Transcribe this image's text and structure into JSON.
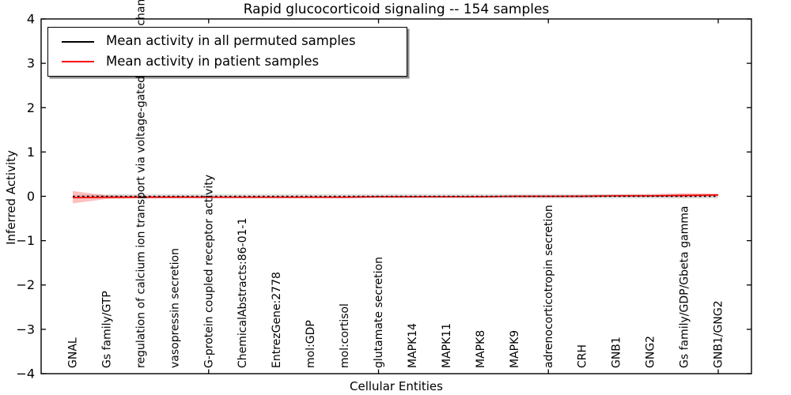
{
  "title": "Rapid glucocorticoid signaling -- 154 samples",
  "legend": {
    "items": [
      {
        "label": "Mean activity in all permuted samples",
        "color": "#000000"
      },
      {
        "label": "Mean activity in patient samples",
        "color": "#ff0000"
      }
    ]
  },
  "axes": {
    "x_label": "Cellular Entities",
    "y_label": "Inferred Activity",
    "y_ticks": [
      "4",
      "3",
      "2",
      "1",
      "0",
      "−1",
      "−2",
      "−3",
      "−4"
    ],
    "y_tick_values": [
      4,
      3,
      2,
      1,
      0,
      -1,
      -2,
      -3,
      -4
    ],
    "ylim": [
      -4,
      4
    ],
    "x_tick_mark_indices": [
      4,
      9,
      14,
      19
    ]
  },
  "chart_data": {
    "type": "line",
    "title": "Rapid glucocorticoid signaling -- 154 samples",
    "xlabel": "Cellular Entities",
    "ylabel": "Inferred Activity",
    "ylim": [
      -4,
      4
    ],
    "grid": false,
    "legend_position": "upper left",
    "categories": [
      "GNAL",
      "Gs family/GTP",
      "regulation of calcium ion transport via voltage-gated calcium channels",
      "vasopressin secretion",
      "G-protein coupled receptor activity",
      "ChemicalAbstracts:86-01-1",
      "EntrezGene:2778",
      "mol:GDP",
      "mol:cortisol",
      "glutamate secretion",
      "MAPK14",
      "MAPK11",
      "MAPK8",
      "MAPK9",
      "adrenocorticotropin secretion",
      "CRH",
      "GNB1",
      "GNG2",
      "Gs family/GDP/Gbeta gamma",
      "GNB1/GNG2"
    ],
    "series": [
      {
        "name": "Mean activity in all permuted samples",
        "color": "#000000",
        "style": "dotted",
        "values": [
          0,
          0,
          0,
          0,
          0,
          0,
          0,
          0,
          0,
          0,
          0,
          0,
          0,
          0,
          0,
          0,
          0,
          0,
          0,
          0
        ],
        "band_upper": [
          0.02,
          0.05,
          0.05,
          0.05,
          0.05,
          0.05,
          0.05,
          0.05,
          0.05,
          0.05,
          0.05,
          0.05,
          0.05,
          0.05,
          0.05,
          0.05,
          0.05,
          0.05,
          0.05,
          0.05
        ],
        "band_lower": [
          -0.02,
          -0.05,
          -0.05,
          -0.05,
          -0.05,
          -0.05,
          -0.05,
          -0.05,
          -0.05,
          -0.05,
          -0.05,
          -0.05,
          -0.05,
          -0.05,
          -0.05,
          -0.05,
          -0.05,
          -0.05,
          -0.05,
          -0.05
        ],
        "band_color": "rgba(0,0,0,0.13)"
      },
      {
        "name": "Mean activity in patient samples",
        "color": "#ff0000",
        "style": "solid",
        "values": [
          -0.03,
          -0.02,
          -0.02,
          -0.02,
          -0.02,
          -0.02,
          -0.02,
          -0.02,
          -0.02,
          -0.01,
          -0.01,
          -0.01,
          -0.01,
          0.0,
          0.0,
          0.0,
          0.01,
          0.01,
          0.02,
          0.03
        ],
        "band_upper": [
          0.12,
          0.02,
          0.01,
          0.01,
          0.0,
          0.0,
          0.0,
          0.0,
          0.0,
          0.01,
          0.01,
          0.01,
          0.01,
          0.02,
          0.02,
          0.03,
          0.04,
          0.05,
          0.07,
          0.06
        ],
        "band_lower": [
          -0.16,
          -0.06,
          -0.04,
          -0.04,
          -0.03,
          -0.03,
          -0.03,
          -0.03,
          -0.03,
          -0.03,
          -0.03,
          -0.02,
          -0.02,
          -0.02,
          -0.02,
          -0.01,
          -0.01,
          -0.01,
          -0.02,
          0.0
        ],
        "band_color": "rgba(255,0,0,0.25)"
      }
    ]
  }
}
